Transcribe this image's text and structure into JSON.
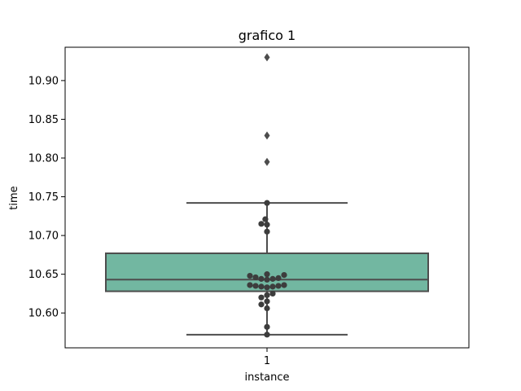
{
  "chart_data": {
    "type": "box",
    "title": "grafico 1",
    "xlabel": "instance",
    "ylabel": "time",
    "categories": [
      "1"
    ],
    "ylim": [
      10.555,
      10.943
    ],
    "yticks": [
      "10.60",
      "10.65",
      "10.70",
      "10.75",
      "10.80",
      "10.85",
      "10.90"
    ],
    "box": {
      "whisker_low": 10.572,
      "q1": 10.628,
      "median": 10.643,
      "q3": 10.677,
      "whisker_high": 10.742,
      "fill_color": "#72b7a1",
      "line_color": "#4d4d4d"
    },
    "outliers": [
      10.795,
      10.829,
      10.93
    ],
    "swarm_points": [
      {
        "y": 10.572,
        "off": 0
      },
      {
        "y": 10.582,
        "off": 0
      },
      {
        "y": 10.606,
        "off": 0
      },
      {
        "y": 10.611,
        "off": -1
      },
      {
        "y": 10.615,
        "off": 0
      },
      {
        "y": 10.62,
        "off": -1
      },
      {
        "y": 10.623,
        "off": 0
      },
      {
        "y": 10.625,
        "off": 1
      },
      {
        "y": 10.633,
        "off": 0
      },
      {
        "y": 10.634,
        "off": -1
      },
      {
        "y": 10.634,
        "off": 1
      },
      {
        "y": 10.635,
        "off": -2
      },
      {
        "y": 10.635,
        "off": 2
      },
      {
        "y": 10.636,
        "off": -3
      },
      {
        "y": 10.636,
        "off": 3
      },
      {
        "y": 10.643,
        "off": 0
      },
      {
        "y": 10.644,
        "off": -1
      },
      {
        "y": 10.644,
        "off": 1
      },
      {
        "y": 10.645,
        "off": 2
      },
      {
        "y": 10.646,
        "off": -2
      },
      {
        "y": 10.648,
        "off": -3
      },
      {
        "y": 10.649,
        "off": 3
      },
      {
        "y": 10.65,
        "off": 0
      },
      {
        "y": 10.705,
        "off": 0
      },
      {
        "y": 10.714,
        "off": 0
      },
      {
        "y": 10.715,
        "off": -1
      },
      {
        "y": 10.721,
        "off": -0.3
      },
      {
        "y": 10.742,
        "off": 0
      }
    ],
    "point_color": "#3d3d3d"
  }
}
